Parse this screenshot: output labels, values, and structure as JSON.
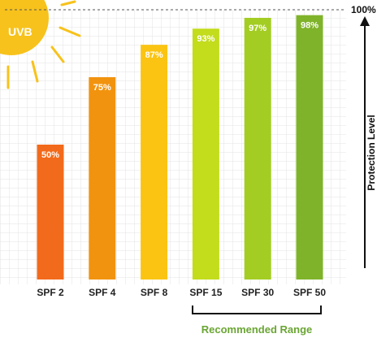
{
  "chart_data": {
    "type": "bar",
    "categories": [
      "SPF 2",
      "SPF 4",
      "SPF 8",
      "SPF 15",
      "SPF 30",
      "SPF 50"
    ],
    "values": [
      50,
      75,
      87,
      93,
      97,
      98
    ],
    "value_labels": [
      "50%",
      "75%",
      "87%",
      "93%",
      "97%",
      "98%"
    ],
    "bar_colors": [
      "#f26a1b",
      "#f2930f",
      "#fbc412",
      "#c3dc1c",
      "#a3cd23",
      "#7fb32a"
    ],
    "ylabel": "Protection Level",
    "top_label": "100%",
    "ylim": [
      0,
      100
    ],
    "grid": true,
    "annotations": {
      "sun_label": "UVB",
      "recommended_range_label": "Recommended Range",
      "recommended_categories": [
        "SPF 15",
        "SPF 30",
        "SPF 50"
      ]
    }
  },
  "colors": {
    "sun": "#f7c21b",
    "grid": "#e6e6e6",
    "range": "#6aa533",
    "axis": "#111111"
  }
}
